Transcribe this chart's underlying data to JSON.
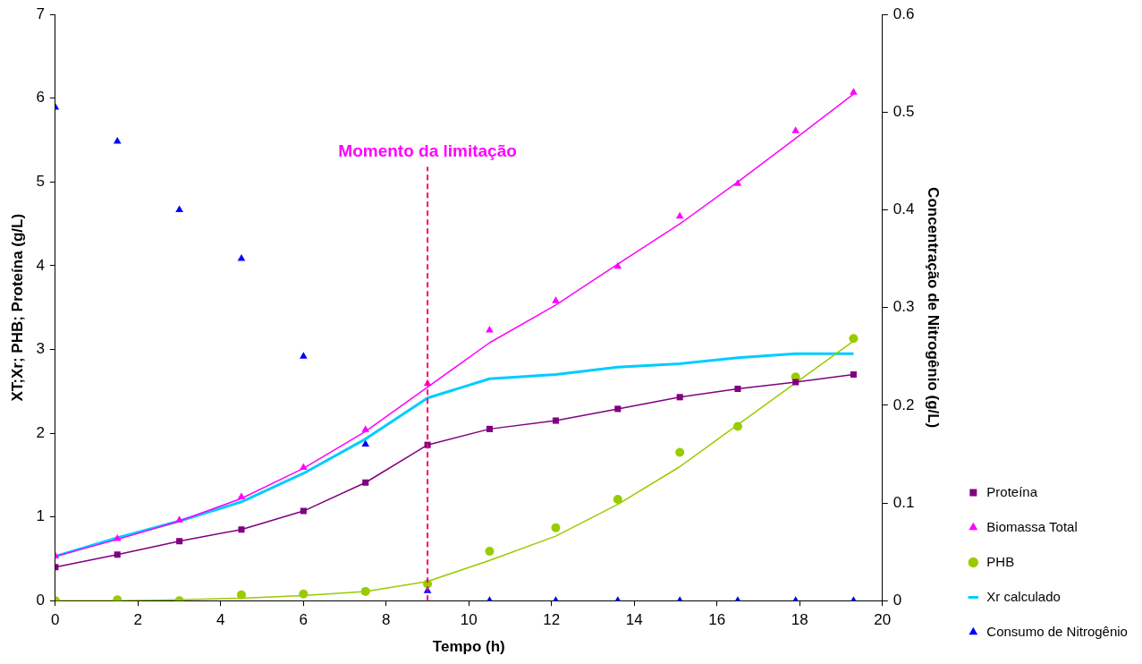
{
  "chart_data": {
    "type": "line",
    "xlabel": "Tempo (h)",
    "ylabel": "XT;Xr; PHB; Proteína (g/L)",
    "y2label": "Concentração de Nitrogênio (g/L)",
    "xlim": [
      0,
      20
    ],
    "xticks": [
      0,
      2,
      4,
      6,
      8,
      10,
      12,
      14,
      16,
      18,
      20
    ],
    "ylim": [
      0,
      7
    ],
    "yticks": [
      0,
      1,
      2,
      3,
      4,
      5,
      6,
      7
    ],
    "y2lim": [
      0,
      0.6
    ],
    "y2ticks": [
      0,
      0.1,
      0.2,
      0.3,
      0.4,
      0.5,
      0.6
    ],
    "grid": false,
    "legend": "right",
    "series": [
      {
        "name": "Proteína",
        "type": "line",
        "marker": "square",
        "color": "#800080",
        "x": [
          0,
          1.5,
          3,
          4.5,
          6,
          7.5,
          9,
          10.5,
          12.1,
          13.6,
          15.1,
          16.5,
          17.9,
          19.3
        ],
        "values": [
          0.4,
          0.55,
          0.71,
          0.85,
          1.07,
          1.41,
          1.86,
          2.05,
          2.15,
          2.29,
          2.43,
          2.53,
          2.61,
          2.7
        ]
      },
      {
        "name": "Biomassa Total",
        "type": "scatter",
        "marker": "triangle",
        "color": "#ff00ff",
        "x": [
          0,
          1.5,
          3,
          4.5,
          6,
          7.5,
          9,
          10.5,
          12.1,
          13.6,
          15.1,
          16.5,
          17.9,
          19.3
        ],
        "values": [
          0.53,
          0.74,
          0.96,
          1.24,
          1.59,
          2.04,
          2.59,
          3.23,
          3.58,
          3.99,
          4.59,
          4.98,
          5.61,
          6.07
        ]
      },
      {
        "type": "line",
        "marker": "none",
        "color": "#ff00ff",
        "x": [
          0,
          1.5,
          3,
          4.5,
          6,
          7.5,
          9,
          10.5,
          12.1,
          13.6,
          15.1,
          16.5,
          17.9,
          19.3
        ],
        "values": [
          0.53,
          0.73,
          0.95,
          1.22,
          1.58,
          2.02,
          2.55,
          3.08,
          3.53,
          4.02,
          4.5,
          5.0,
          5.52,
          6.05
        ]
      },
      {
        "name": "PHB",
        "type": "scatter",
        "marker": "circle",
        "color": "#99cc00",
        "x": [
          0,
          1.5,
          3,
          4.5,
          6,
          7.5,
          9,
          10.5,
          12.1,
          13.6,
          15.1,
          16.5,
          17.9,
          19.3
        ],
        "values": [
          0,
          0.01,
          0,
          0.07,
          0.08,
          0.11,
          0.2,
          0.59,
          0.87,
          1.21,
          1.77,
          2.08,
          2.67,
          3.13
        ]
      },
      {
        "type": "line",
        "marker": "none",
        "color": "#99cc00",
        "x": [
          0,
          1.5,
          3,
          4.5,
          6,
          7.5,
          9,
          10.5,
          12.1,
          13.6,
          15.1,
          16.5,
          17.9,
          19.3
        ],
        "values": [
          0,
          0,
          0.01,
          0.03,
          0.06,
          0.11,
          0.23,
          0.48,
          0.77,
          1.15,
          1.6,
          2.1,
          2.6,
          3.1
        ]
      },
      {
        "name": "Xr calculado",
        "type": "line",
        "marker": "none",
        "color": "#00ccff",
        "x": [
          0,
          1.5,
          3,
          4.5,
          6,
          7.5,
          9,
          10.5,
          12.1,
          13.6,
          15.1,
          16.5,
          17.9,
          19.3
        ],
        "values": [
          0.53,
          0.75,
          0.95,
          1.18,
          1.52,
          1.93,
          2.42,
          2.65,
          2.7,
          2.79,
          2.83,
          2.9,
          2.95,
          2.95
        ]
      },
      {
        "name": "Consumo de Nitrogênio",
        "type": "scatter",
        "marker": "triangle",
        "axis": "y2",
        "color": "#0000ff",
        "x": [
          0,
          1.5,
          3,
          4.5,
          6,
          7.5,
          9,
          10.5,
          12.1,
          13.6,
          15.1,
          16.5,
          17.9,
          19.3
        ],
        "values": [
          0.505,
          0.47,
          0.4,
          0.35,
          0.25,
          0.16,
          0.01,
          0,
          0,
          0,
          0,
          0,
          0,
          0
        ]
      }
    ],
    "ref_lines": [
      {
        "axis": "x",
        "value": 9,
        "label": "Momento da limitação",
        "color": "#ff0066",
        "line_style": "dashed"
      }
    ]
  }
}
